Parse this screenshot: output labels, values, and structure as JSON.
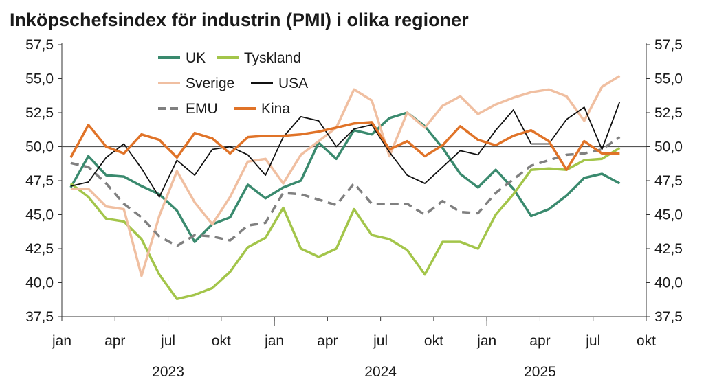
{
  "chart_data": {
    "type": "line",
    "title": "Inköpschefsindex för industrin (PMI) i olika regioner",
    "xlabel": "",
    "ylabel": "",
    "ylim": [
      37.5,
      57.5
    ],
    "yticks": [
      "57,5",
      "55,0",
      "52,5",
      "50,0",
      "47,5",
      "45,0",
      "42,5",
      "40,0",
      "37,5"
    ],
    "ytick_values": [
      57.5,
      55.0,
      52.5,
      50.0,
      47.5,
      45.0,
      42.5,
      40.0,
      37.5
    ],
    "reference_line": 50,
    "month_ticks": [
      "jan",
      "apr",
      "jul",
      "okt",
      "jan",
      "apr",
      "jul",
      "okt",
      "jan",
      "apr",
      "jul",
      "okt"
    ],
    "years": [
      "2023",
      "2024",
      "2025"
    ],
    "x": [
      "2023-01",
      "2023-02",
      "2023-03",
      "2023-04",
      "2023-05",
      "2023-06",
      "2023-07",
      "2023-08",
      "2023-09",
      "2023-10",
      "2023-11",
      "2023-12",
      "2024-01",
      "2024-02",
      "2024-03",
      "2024-04",
      "2024-05",
      "2024-06",
      "2024-07",
      "2024-08",
      "2024-09",
      "2024-10",
      "2024-11",
      "2024-12",
      "2025-01",
      "2025-02",
      "2025-03",
      "2025-04",
      "2025-05",
      "2025-06",
      "2025-07",
      "2025-08"
    ],
    "series": [
      {
        "name": "UK",
        "color": "#3a8a6e",
        "dash": "solid",
        "width": 3.5,
        "values": [
          47.0,
          49.3,
          47.9,
          47.8,
          47.1,
          46.5,
          45.3,
          43.0,
          44.3,
          44.8,
          47.2,
          46.2,
          47.0,
          47.5,
          50.3,
          49.1,
          51.2,
          50.9,
          52.1,
          52.5,
          51.5,
          49.9,
          48.0,
          47.0,
          48.3,
          46.9,
          44.9,
          45.4,
          46.4,
          47.7,
          48.0,
          47.3
        ]
      },
      {
        "name": "Tyskland",
        "color": "#a3c54a",
        "dash": "solid",
        "width": 3.5,
        "values": [
          47.3,
          46.3,
          44.7,
          44.5,
          43.2,
          40.6,
          38.8,
          39.1,
          39.6,
          40.8,
          42.6,
          43.3,
          45.5,
          42.5,
          41.9,
          42.5,
          45.4,
          43.5,
          43.2,
          42.4,
          40.6,
          43.0,
          43.0,
          42.5,
          45.0,
          46.5,
          48.3,
          48.4,
          48.3,
          49.0,
          49.1,
          49.9
        ]
      },
      {
        "name": "Sverige",
        "color": "#f0bfa1",
        "dash": "solid",
        "width": 3.5,
        "values": [
          46.9,
          46.9,
          45.6,
          45.4,
          40.5,
          44.9,
          48.2,
          45.9,
          44.3,
          46.3,
          48.9,
          49.1,
          47.3,
          49.4,
          50.4,
          51.4,
          54.2,
          53.4,
          49.3,
          52.5,
          51.4,
          53.0,
          53.7,
          52.4,
          53.1,
          53.6,
          54.0,
          54.2,
          53.7,
          51.9,
          54.4,
          55.2
        ]
      },
      {
        "name": "USA",
        "color": "#111111",
        "dash": "solid",
        "width": 1.8,
        "values": [
          47.1,
          47.4,
          49.2,
          50.2,
          48.4,
          46.3,
          49.0,
          47.9,
          49.8,
          50.0,
          49.4,
          47.9,
          50.7,
          52.2,
          51.9,
          50.0,
          51.3,
          51.6,
          49.6,
          47.9,
          47.3,
          48.5,
          49.7,
          49.4,
          51.2,
          52.7,
          50.2,
          50.2,
          52.0,
          52.9,
          49.8,
          53.3
        ]
      },
      {
        "name": "EMU",
        "color": "#808080",
        "dash": "dashed",
        "width": 3.5,
        "values": [
          48.8,
          48.5,
          47.3,
          45.8,
          44.8,
          43.4,
          42.7,
          43.5,
          43.4,
          43.1,
          44.2,
          44.4,
          46.6,
          46.5,
          46.1,
          45.7,
          47.3,
          45.8,
          45.8,
          45.8,
          45.0,
          46.0,
          45.2,
          45.1,
          46.6,
          47.6,
          48.6,
          49.0,
          49.4,
          49.5,
          49.8,
          50.7
        ]
      },
      {
        "name": "Kina",
        "color": "#e07328",
        "dash": "solid",
        "width": 3.5,
        "values": [
          49.2,
          51.6,
          50.0,
          49.5,
          50.9,
          50.5,
          49.2,
          51.0,
          50.6,
          49.5,
          50.7,
          50.8,
          50.8,
          50.9,
          51.1,
          51.4,
          51.7,
          51.8,
          49.8,
          50.4,
          49.3,
          50.1,
          51.5,
          50.5,
          50.1,
          50.8,
          51.2,
          50.4,
          48.3,
          50.4,
          49.5,
          49.5
        ]
      }
    ],
    "legend": [
      [
        {
          "name": "UK",
          "color": "#3a8a6e",
          "dash": "solid"
        },
        {
          "name": "Tyskland",
          "color": "#a3c54a",
          "dash": "solid"
        }
      ],
      [
        {
          "name": "Sverige",
          "color": "#f0bfa1",
          "dash": "solid"
        },
        {
          "name": "USA",
          "color": "#111111",
          "dash": "solid"
        }
      ],
      [
        {
          "name": "EMU",
          "color": "#808080",
          "dash": "dashed"
        },
        {
          "name": "Kina",
          "color": "#e07328",
          "dash": "solid"
        }
      ]
    ],
    "legend_position": "top-left"
  }
}
